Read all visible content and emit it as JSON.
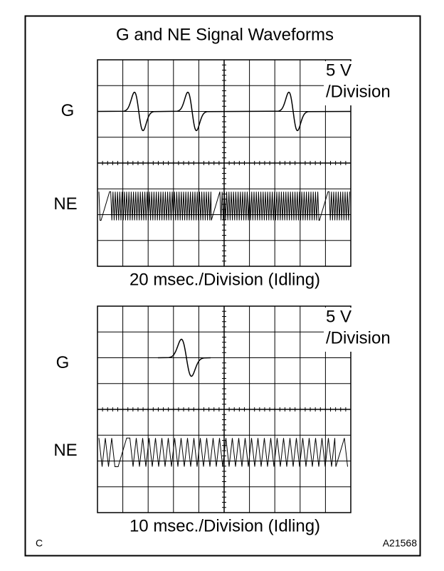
{
  "title": "G and NE Signal Waveforms",
  "panels": [
    {
      "scale_line_1": "5 V",
      "scale_line_2": "/Division",
      "g_label": "G",
      "ne_label": "NE",
      "time_label": "20 msec./Division (Idling)"
    },
    {
      "scale_line_1": "5 V",
      "scale_line_2": "/Division",
      "g_label": "G",
      "ne_label": "NE",
      "time_label": "10 msec./Division (Idling)"
    }
  ],
  "footer": {
    "left": "C",
    "right": "A21568"
  }
}
